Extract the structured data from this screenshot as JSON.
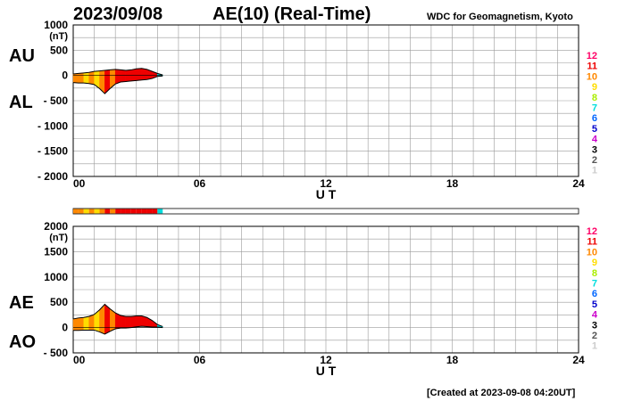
{
  "header": {
    "date": "2023/09/08",
    "title": "AE(10) (Real-Time)",
    "source": "WDC for Geomagnetism, Kyoto"
  },
  "footer": {
    "created": "[Created at 2023-09-08 04:20UT]"
  },
  "legend": {
    "labels": [
      "12",
      "11",
      "10",
      "9",
      "8",
      "7",
      "6",
      "5",
      "4",
      "3",
      "2",
      "1"
    ],
    "colors": [
      "#ff0066",
      "#ee0000",
      "#ff8800",
      "#ffdd00",
      "#aaee00",
      "#00dddd",
      "#0066ff",
      "#0000cc",
      "#cc00cc",
      "#000000",
      "#555555",
      "#cccccc"
    ]
  },
  "chart_data": [
    {
      "type": "area",
      "panel": "AU/AL",
      "series_labels": [
        "AU",
        "AL"
      ],
      "unit_label": "(nT)",
      "xlabel": "U T",
      "xlim": [
        0,
        24
      ],
      "xticks": [
        0,
        6,
        12,
        18,
        24
      ],
      "xtick_labels": [
        "00",
        "06",
        "12",
        "18",
        "24"
      ],
      "ylim": [
        -2000,
        1000
      ],
      "yticks": [
        1000,
        500,
        0,
        -500,
        -1000,
        -1500,
        -2000
      ],
      "ytick_labels": [
        "1000",
        "500",
        "0",
        "- 500",
        "- 1000",
        "- 1500",
        "- 2000"
      ],
      "grid": true,
      "x": [
        0,
        0.25,
        0.5,
        0.75,
        1.0,
        1.25,
        1.5,
        1.75,
        2.0,
        2.25,
        2.5,
        2.75,
        3.0,
        3.25,
        3.5,
        3.75,
        4.0,
        4.25
      ],
      "AU": [
        30,
        40,
        50,
        60,
        80,
        90,
        100,
        110,
        120,
        110,
        100,
        110,
        130,
        140,
        120,
        80,
        40,
        10
      ],
      "AL": [
        -140,
        -150,
        -150,
        -160,
        -180,
        -260,
        -360,
        -260,
        -170,
        -130,
        -120,
        -110,
        -100,
        -90,
        -80,
        -60,
        -20,
        -10
      ],
      "station_colors_index": [
        9,
        9,
        8,
        9,
        8,
        9,
        10,
        9,
        10,
        10,
        10,
        10,
        10,
        10,
        10,
        10,
        6,
        5
      ]
    },
    {
      "type": "area",
      "panel": "AE/AO",
      "series_labels": [
        "AE",
        "AO"
      ],
      "unit_label": "(nT)",
      "xlabel": "U T",
      "xlim": [
        0,
        24
      ],
      "xticks": [
        0,
        6,
        12,
        18,
        24
      ],
      "xtick_labels": [
        "00",
        "06",
        "12",
        "18",
        "24"
      ],
      "ylim": [
        -500,
        2000
      ],
      "yticks": [
        2000,
        1500,
        1000,
        500,
        0,
        -500
      ],
      "ytick_labels": [
        "2000",
        "1500",
        "1000",
        "500",
        "0",
        "- 500"
      ],
      "grid": true,
      "x": [
        0,
        0.25,
        0.5,
        0.75,
        1.0,
        1.25,
        1.5,
        1.75,
        2.0,
        2.25,
        2.5,
        2.75,
        3.0,
        3.25,
        3.5,
        3.75,
        4.0,
        4.25
      ],
      "AE": [
        170,
        190,
        200,
        220,
        260,
        350,
        460,
        370,
        290,
        240,
        220,
        220,
        230,
        230,
        200,
        140,
        60,
        20
      ],
      "AO": [
        -55,
        -55,
        -50,
        -50,
        -50,
        -85,
        -130,
        -75,
        -25,
        -10,
        -10,
        0,
        15,
        25,
        20,
        10,
        10,
        0
      ],
      "station_colors_index": [
        9,
        9,
        8,
        9,
        8,
        9,
        10,
        9,
        10,
        10,
        10,
        10,
        10,
        10,
        10,
        10,
        6,
        5
      ]
    }
  ]
}
